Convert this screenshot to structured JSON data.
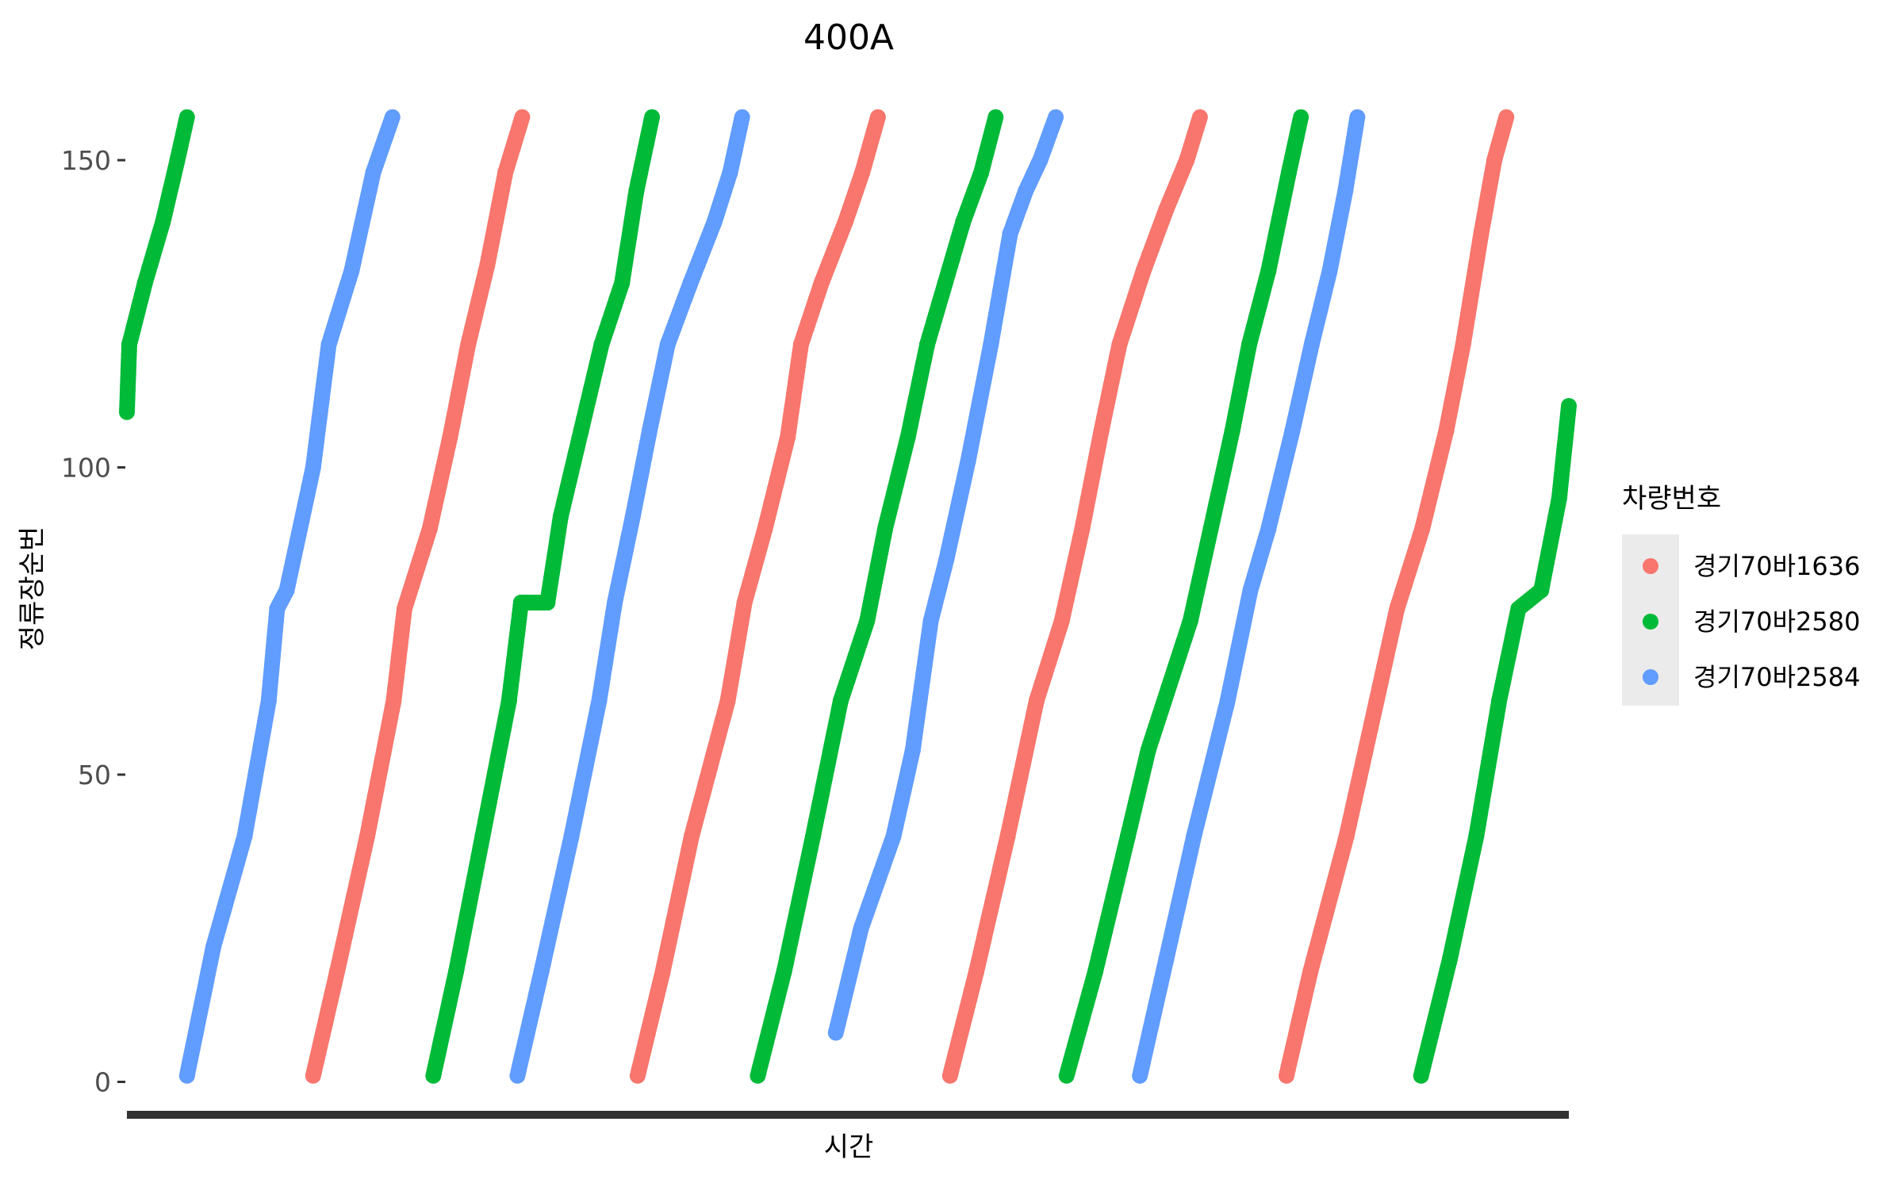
{
  "chart_data": {
    "type": "scatter",
    "title": "400A",
    "xlabel": "시간",
    "ylabel": "정류장순번",
    "ylim": [
      -2,
      158
    ],
    "yticks": [
      0,
      50,
      100,
      150
    ],
    "xlim": [
      0,
      1200
    ],
    "x_ticks_shown": false,
    "grid": false,
    "legend": {
      "title": "차량번호",
      "position": "right"
    },
    "series": [
      {
        "name": "경기70바1636",
        "color": "#F8766D",
        "trips": [
          {
            "x": [
              155,
              175,
              200,
              222,
              231,
              252,
              269,
              284,
              300,
              315,
              329
            ],
            "y": [
              1,
              18,
              40,
              62,
              77,
              90,
              105,
              120,
              133,
              148,
              157
            ]
          },
          {
            "x": [
              425,
              446,
              470,
              500,
              514,
              531,
              550,
              561,
              578,
              598,
              612,
              625
            ],
            "y": [
              1,
              18,
              40,
              62,
              78,
              90,
              105,
              120,
              130,
              140,
              148,
              157
            ]
          },
          {
            "x": [
              685,
              707,
              733,
              757,
              778,
              795,
              811,
              826,
              846,
              865,
              882,
              893
            ],
            "y": [
              1,
              18,
              40,
              62,
              75,
              90,
              106,
              120,
              132,
              142,
              150,
              157
            ]
          },
          {
            "x": [
              965,
              985,
              1015,
              1040,
              1057,
              1078,
              1098,
              1112,
              1127,
              1138,
              1148
            ],
            "y": [
              1,
              18,
              40,
              62,
              77,
              90,
              106,
              120,
              138,
              150,
              157
            ]
          }
        ]
      },
      {
        "name": "경기70바2580",
        "color": "#00BA38",
        "trips": [
          {
            "x": [
              0,
              2,
              15,
              30,
              42,
              50
            ],
            "y": [
              109,
              120,
              130,
              140,
              150,
              157
            ]
          },
          {
            "x": [
              255,
              274,
              296,
              318,
              328,
              350,
              361,
              378,
              395,
              412,
              424,
              437
            ],
            "y": [
              1,
              18,
              40,
              62,
              78,
              78,
              92,
              106,
              120,
              130,
              145,
              157
            ]
          },
          {
            "x": [
              525,
              547,
              571,
              594,
              616,
              631,
              650,
              666,
              681,
              696,
              711,
              723
            ],
            "y": [
              1,
              18,
              40,
              62,
              75,
              90,
              105,
              120,
              130,
              140,
              148,
              157
            ]
          },
          {
            "x": [
              782,
              806,
              833,
              850,
              885,
              902,
              920,
              934,
              950,
              967,
              977
            ],
            "y": [
              1,
              18,
              40,
              54,
              75,
              90,
              106,
              120,
              132,
              148,
              157
            ]
          },
          {
            "x": [
              1077,
              1101,
              1123,
              1142,
              1158,
              1177,
              1192,
              1200
            ],
            "y": [
              1,
              20,
              40,
              62,
              77,
              80,
              95,
              110
            ]
          }
        ]
      },
      {
        "name": "경기70바2584",
        "color": "#619CFF",
        "trips": [
          {
            "x": [
              50,
              72,
              98,
              118,
              125,
              133,
              155,
              168,
              187,
              205,
              221
            ],
            "y": [
              1,
              22,
              40,
              62,
              77,
              80,
              100,
              120,
              132,
              148,
              157
            ]
          },
          {
            "x": [
              325,
              345,
              370,
              393,
              406,
              421,
              435,
              450,
              469,
              489,
              502,
              512
            ],
            "y": [
              1,
              18,
              40,
              62,
              78,
              92,
              106,
              120,
              130,
              140,
              148,
              157
            ]
          },
          {
            "x": [
              590,
              611,
              638,
              654,
              669,
              682,
              700,
              719,
              735,
              748,
              760,
              773
            ],
            "y": [
              8,
              25,
              40,
              54,
              75,
              85,
              101,
              120,
              138,
              145,
              150,
              157
            ]
          },
          {
            "x": [
              843,
              865,
              888,
              916,
              935,
              950,
              970,
              986,
              1001,
              1014,
              1024
            ],
            "y": [
              1,
              20,
              40,
              62,
              80,
              90,
              106,
              120,
              132,
              145,
              157
            ]
          }
        ]
      }
    ]
  }
}
